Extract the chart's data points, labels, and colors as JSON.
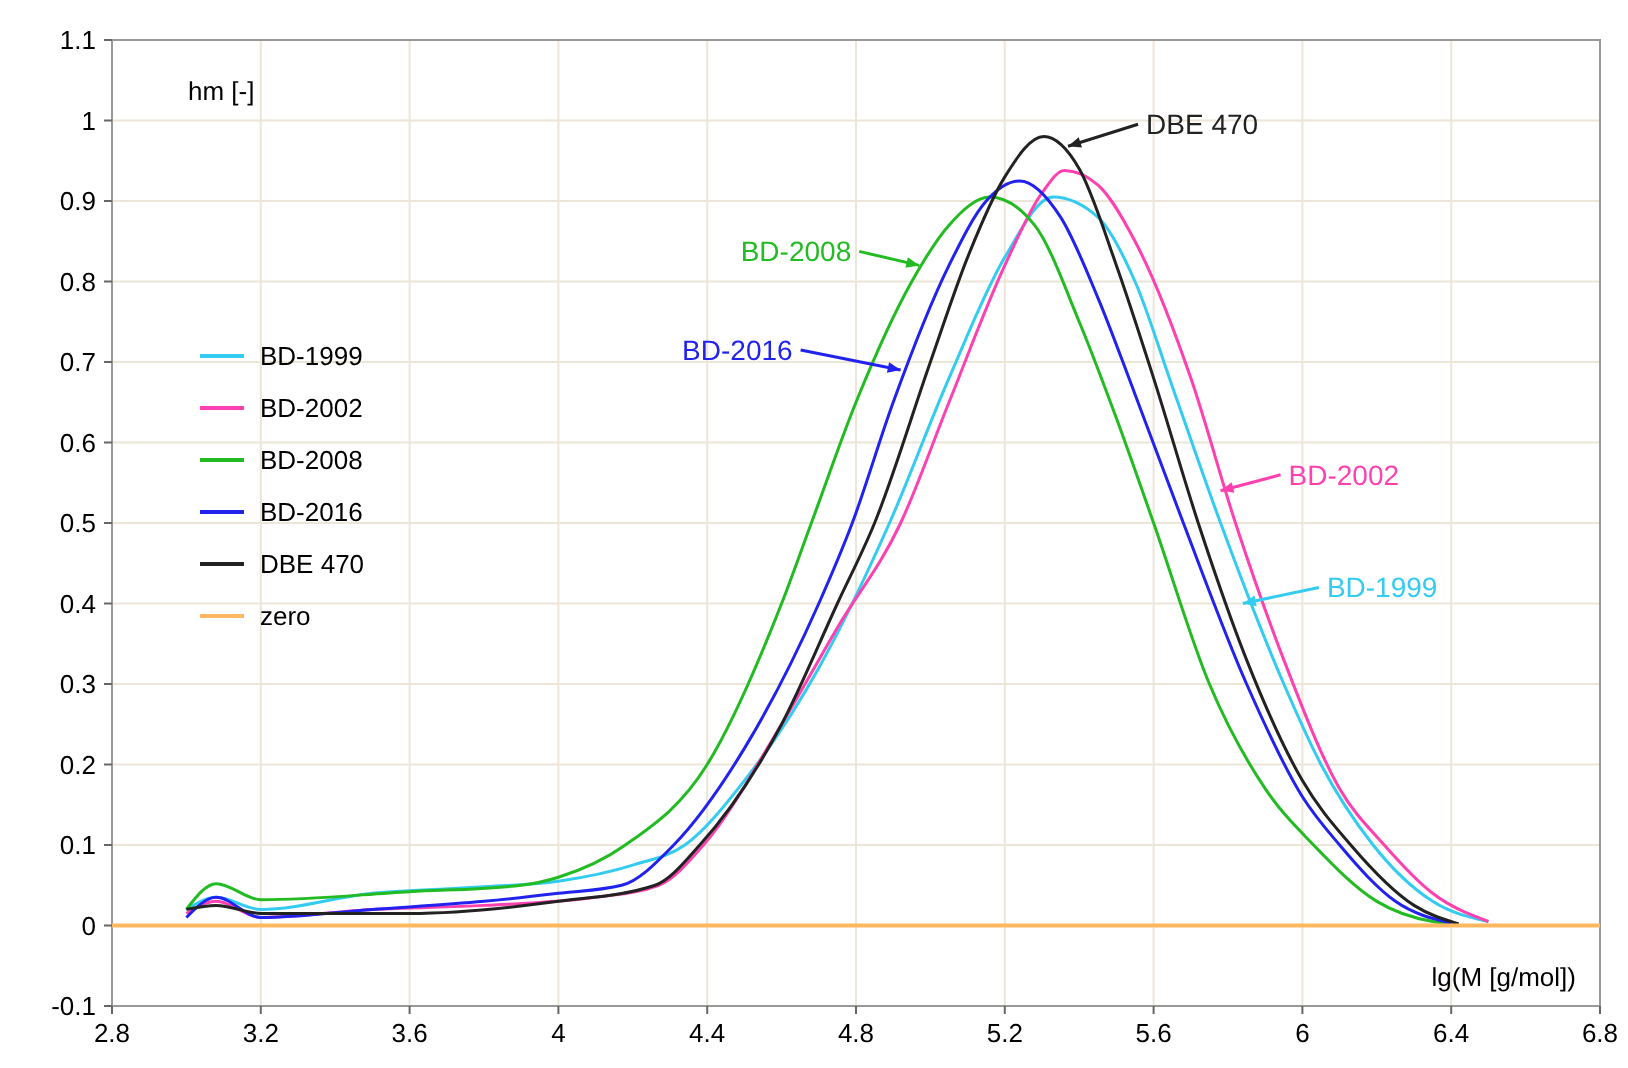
{
  "chart_data": {
    "type": "line",
    "xlabel": "lg(M [g/mol])",
    "ylabel": "hm [-]",
    "xlim": [
      2.8,
      6.8
    ],
    "xticks": [
      2.8,
      3.2,
      3.6,
      4,
      4.4,
      4.8,
      5.2,
      5.6,
      6,
      6.4,
      6.8
    ],
    "ylim": [
      -0.1,
      1.1
    ],
    "yticks": [
      -0.1,
      0,
      0.1,
      0.2,
      0.3,
      0.4,
      0.5,
      0.6,
      0.7,
      0.8,
      0.9,
      1,
      1.1
    ],
    "grid": true,
    "legend": "left",
    "marker": "none",
    "line_style": "solid",
    "series": [
      {
        "name": "BD-1999",
        "color": "#33ccf0",
        "x": [
          3.0,
          3.08,
          3.2,
          3.5,
          3.8,
          4.0,
          4.2,
          4.34,
          4.5,
          4.7,
          4.89,
          5.05,
          5.2,
          5.33,
          5.45,
          5.55,
          5.65,
          5.78,
          5.95,
          6.05,
          6.19,
          6.35,
          6.5
        ],
        "values": [
          0.02,
          0.035,
          0.02,
          0.04,
          0.048,
          0.055,
          0.075,
          0.1,
          0.18,
          0.32,
          0.5,
          0.68,
          0.83,
          0.905,
          0.88,
          0.8,
          0.67,
          0.5,
          0.3,
          0.2,
          0.1,
          0.03,
          0.005
        ]
      },
      {
        "name": "BD-2002",
        "color": "#ff40b0",
        "x": [
          3.0,
          3.08,
          3.2,
          3.5,
          3.8,
          4.1,
          4.27,
          4.39,
          4.6,
          4.75,
          4.92,
          5.05,
          5.2,
          5.3,
          5.36,
          5.45,
          5.55,
          5.7,
          5.82,
          5.95,
          6.1,
          6.22,
          6.35,
          6.5
        ],
        "values": [
          0.015,
          0.03,
          0.01,
          0.02,
          0.025,
          0.035,
          0.05,
          0.1,
          0.25,
          0.37,
          0.5,
          0.65,
          0.82,
          0.91,
          0.938,
          0.92,
          0.85,
          0.68,
          0.5,
          0.33,
          0.17,
          0.1,
          0.04,
          0.005
        ]
      },
      {
        "name": "BD-2008",
        "color": "#22bb22",
        "x": [
          3.0,
          3.08,
          3.2,
          3.6,
          3.9,
          4.0,
          4.18,
          4.4,
          4.6,
          4.68,
          4.8,
          4.95,
          5.05,
          5.16,
          5.28,
          5.4,
          5.5,
          5.6,
          5.75,
          5.9,
          6.03,
          6.2,
          6.35,
          6.42
        ],
        "values": [
          0.02,
          0.052,
          0.032,
          0.042,
          0.05,
          0.06,
          0.1,
          0.2,
          0.4,
          0.5,
          0.65,
          0.8,
          0.87,
          0.905,
          0.87,
          0.75,
          0.63,
          0.5,
          0.3,
          0.17,
          0.1,
          0.03,
          0.005,
          0.002
        ]
      },
      {
        "name": "BD-2016",
        "color": "#2222ee",
        "x": [
          3.0,
          3.08,
          3.2,
          3.5,
          3.8,
          4.0,
          4.17,
          4.31,
          4.5,
          4.7,
          4.79,
          4.9,
          5.05,
          5.15,
          5.24,
          5.35,
          5.45,
          5.55,
          5.68,
          5.85,
          6.0,
          6.1,
          6.25,
          6.4
        ],
        "values": [
          0.01,
          0.035,
          0.01,
          0.02,
          0.03,
          0.04,
          0.05,
          0.1,
          0.22,
          0.4,
          0.5,
          0.65,
          0.82,
          0.9,
          0.925,
          0.88,
          0.78,
          0.66,
          0.5,
          0.3,
          0.16,
          0.1,
          0.03,
          0.003
        ]
      },
      {
        "name": "DBE 470",
        "color": "#222222",
        "x": [
          3.0,
          3.08,
          3.2,
          3.6,
          4.0,
          4.26,
          4.38,
          4.6,
          4.75,
          4.85,
          5.0,
          5.1,
          5.2,
          5.305,
          5.4,
          5.5,
          5.6,
          5.72,
          5.85,
          6.0,
          6.13,
          6.3,
          6.42
        ],
        "values": [
          0.02,
          0.025,
          0.015,
          0.015,
          0.03,
          0.05,
          0.1,
          0.25,
          0.4,
          0.5,
          0.7,
          0.83,
          0.93,
          0.98,
          0.94,
          0.82,
          0.68,
          0.5,
          0.33,
          0.18,
          0.1,
          0.025,
          0.002
        ]
      },
      {
        "name": "zero",
        "color": "#ffb860",
        "x": [
          2.8,
          6.8
        ],
        "values": [
          0,
          0
        ]
      }
    ],
    "annotations": [
      {
        "text": "BD-1999",
        "x": 5.84,
        "y": 0.4
      },
      {
        "text": "BD-2002",
        "x": 5.78,
        "y": 0.54
      },
      {
        "text": "BD-2008",
        "x": 4.97,
        "y": 0.82
      },
      {
        "text": "BD-2016",
        "x": 4.92,
        "y": 0.69
      },
      {
        "text": "DBE 470",
        "x": 5.37,
        "y": 0.968
      }
    ]
  }
}
